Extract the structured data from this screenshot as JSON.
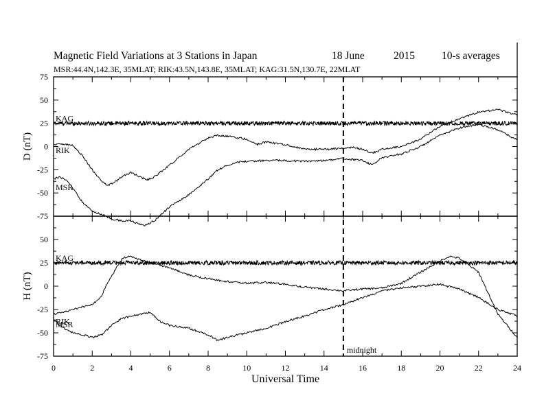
{
  "header": {
    "title": "Magnetic Field Variations at 3 Stations in Japan",
    "date": "18 June",
    "year": "2015",
    "averaging": "10-s averages",
    "stations_line": "MSR:44.4N,142.3E, 35MLAT;  RIK:43.5N,143.8E, 35MLAT;  KAG:31.5N,130.7E, 22MLAT"
  },
  "chart_data": [
    {
      "panel": "D",
      "type": "line",
      "ylabel": "D (nT)",
      "ylim": [
        -75,
        75
      ],
      "yticks": [
        "75",
        "50",
        "25",
        "0",
        "-25",
        "-50",
        "-75"
      ],
      "series": [
        {
          "name": "KAG",
          "x": [
            0,
            24
          ],
          "y": [
            25,
            25
          ]
        },
        {
          "name": "RIK",
          "x": [
            0,
            0.5,
            1,
            1.5,
            2,
            2.5,
            2.8,
            3.2,
            3.5,
            4,
            4.5,
            4.8,
            5.2,
            6,
            7,
            8,
            8.5,
            9,
            10,
            10.5,
            11,
            12,
            13,
            14,
            15,
            15.5,
            16,
            16.5,
            17,
            18,
            19,
            20,
            21,
            22,
            23,
            24
          ],
          "y": [
            2,
            3,
            1,
            -10,
            -25,
            -38,
            -42,
            -38,
            -33,
            -28,
            -33,
            -36,
            -33,
            -20,
            -3,
            9,
            12,
            11,
            8,
            2,
            5,
            2,
            -3,
            -3,
            -2,
            -1,
            -3,
            -7,
            -3,
            0,
            8,
            22,
            30,
            37,
            40,
            34
          ]
        },
        {
          "name": "MSR",
          "x": [
            0,
            0.3,
            0.7,
            1,
            1.5,
            2,
            2.5,
            3,
            3.5,
            4,
            4.5,
            4.8,
            5.2,
            5.5,
            6,
            7,
            8,
            8.5,
            9,
            9.5,
            10,
            11,
            12,
            13,
            14,
            15,
            15.5,
            16,
            16.5,
            17,
            18,
            19,
            20,
            21,
            22,
            23,
            24
          ],
          "y": [
            -35,
            -33,
            -36,
            -45,
            -60,
            -70,
            -73,
            -78,
            -80,
            -80,
            -84,
            -85,
            -80,
            -75,
            -65,
            -52,
            -35,
            -25,
            -20,
            -17,
            -16,
            -15,
            -15,
            -16,
            -15,
            -13,
            -14,
            -15,
            -20,
            -12,
            -8,
            0,
            12,
            20,
            24,
            18,
            7
          ]
        }
      ]
    },
    {
      "panel": "H",
      "type": "line",
      "ylabel": "H (nT)",
      "xlabel": "Universal Time",
      "xlim": [
        0,
        24
      ],
      "xticks": [
        "0",
        "2",
        "4",
        "6",
        "8",
        "10",
        "12",
        "14",
        "16",
        "18",
        "20",
        "22",
        "24"
      ],
      "ylim": [
        -75,
        75
      ],
      "yticks": [
        "75",
        "50",
        "25",
        "0",
        "-25",
        "-50",
        "-75"
      ],
      "annotation": "midnight",
      "midnight_ut": 15,
      "series": [
        {
          "name": "KAG",
          "x": [
            0,
            24
          ],
          "y": [
            25,
            25
          ]
        },
        {
          "name": "RIK",
          "x": [
            0,
            0.5,
            1,
            1.5,
            2,
            2.5,
            2.7,
            3,
            3.3,
            3.6,
            4,
            4.5,
            5,
            6,
            7,
            8,
            9,
            10,
            11,
            12,
            13,
            14,
            15,
            16,
            17,
            18,
            19,
            20,
            20.5,
            21,
            22,
            23,
            24
          ],
          "y": [
            -30,
            -28,
            -25,
            -22,
            -20,
            -10,
            0,
            10,
            22,
            30,
            32,
            28,
            25,
            20,
            12,
            8,
            5,
            3,
            4,
            2,
            -1,
            -3,
            -5,
            -3,
            -2,
            3,
            15,
            27,
            32,
            30,
            15,
            -30,
            -55
          ]
        },
        {
          "name": "MSR",
          "x": [
            0,
            0.5,
            1,
            1.5,
            2,
            2.5,
            3,
            3.5,
            4,
            4.5,
            5,
            5.5,
            6,
            7,
            8,
            8.5,
            9,
            10,
            11,
            12,
            13,
            14,
            15,
            16,
            17,
            18,
            19,
            20,
            21,
            22,
            23,
            24
          ],
          "y": [
            -35,
            -45,
            -50,
            -52,
            -55,
            -52,
            -42,
            -35,
            -32,
            -30,
            -28,
            -38,
            -42,
            -45,
            -52,
            -58,
            -55,
            -50,
            -45,
            -38,
            -32,
            -25,
            -20,
            -12,
            -5,
            -2,
            0,
            2,
            -3,
            -12,
            -25,
            -32
          ]
        }
      ]
    }
  ]
}
